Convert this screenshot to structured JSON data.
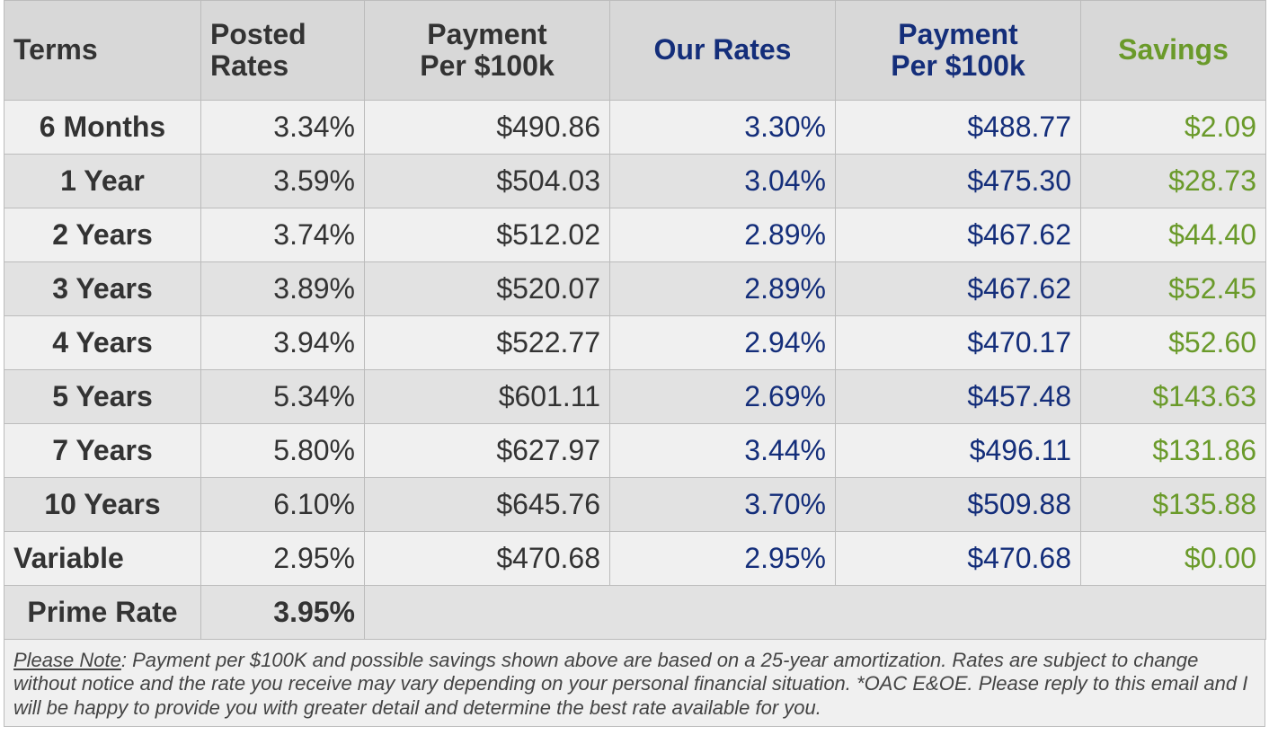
{
  "headers": {
    "terms": "Terms",
    "posted_line1": "Posted",
    "posted_line2": "Rates",
    "payment_line1": "Payment",
    "payment_line2": "Per $100k",
    "our_rates": "Our Rates",
    "payment2_line1": "Payment",
    "payment2_line2": "Per $100k",
    "savings": "Savings"
  },
  "rows": [
    {
      "term": "6 Months",
      "posted": "3.34%",
      "payment": "$490.86",
      "our": "3.30%",
      "our_payment": "$488.77",
      "savings": "$2.09"
    },
    {
      "term": "1 Year",
      "posted": "3.59%",
      "payment": "$504.03",
      "our": "3.04%",
      "our_payment": "$475.30",
      "savings": "$28.73"
    },
    {
      "term": "2 Years",
      "posted": "3.74%",
      "payment": "$512.02",
      "our": "2.89%",
      "our_payment": "$467.62",
      "savings": "$44.40"
    },
    {
      "term": "3 Years",
      "posted": "3.89%",
      "payment": "$520.07",
      "our": "2.89%",
      "our_payment": "$467.62",
      "savings": "$52.45"
    },
    {
      "term": "4 Years",
      "posted": "3.94%",
      "payment": "$522.77",
      "our": "2.94%",
      "our_payment": "$470.17",
      "savings": "$52.60"
    },
    {
      "term": "5 Years",
      "posted": "5.34%",
      "payment": "$601.11",
      "our": "2.69%",
      "our_payment": "$457.48",
      "savings": "$143.63"
    },
    {
      "term": "7 Years",
      "posted": "5.80%",
      "payment": "$627.97",
      "our": "3.44%",
      "our_payment": "$496.11",
      "savings": "$131.86"
    },
    {
      "term": "10 Years",
      "posted": "6.10%",
      "payment": "$645.76",
      "our": "3.70%",
      "our_payment": "$509.88",
      "savings": "$135.88"
    },
    {
      "term": "Variable",
      "posted": "2.95%",
      "payment": "$470.68",
      "our": "2.95%",
      "our_payment": "$470.68",
      "savings": "$0.00"
    }
  ],
  "prime": {
    "label": "Prime Rate",
    "value": "3.95%"
  },
  "note": {
    "label": "Please Note",
    "text": ": Payment per $100K and possible savings shown above are based on a 25-year amortization. Rates are subject to change without notice and the rate you receive may vary depending on your personal financial situation. *OAC E&OE. Please reply to this email and I will be happy to provide you with greater detail and determine the best rate available for you."
  },
  "colors": {
    "navy": "#142e7a",
    "green": "#6a9a2a",
    "grey_text": "#333333"
  }
}
